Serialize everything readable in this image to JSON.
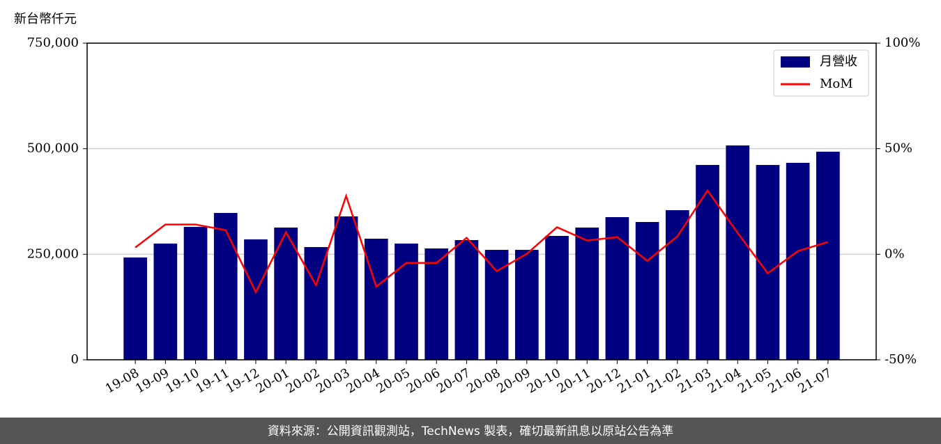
{
  "chart_data": {
    "type": "bar_line",
    "y_label": "新台幣仟元",
    "categories": [
      "19-08",
      "19-09",
      "19-10",
      "19-11",
      "19-12",
      "20-01",
      "20-02",
      "20-03",
      "20-04",
      "20-05",
      "20-06",
      "20-07",
      "20-08",
      "20-09",
      "20-10",
      "20-11",
      "20-12",
      "21-01",
      "21-02",
      "21-03",
      "21-04",
      "21-05",
      "21-06",
      "21-07"
    ],
    "series": [
      {
        "name": "月營收",
        "type": "bar",
        "color": "#000080",
        "values": [
          242300,
          275300,
          314800,
          347800,
          285200,
          313200,
          267000,
          339600,
          286800,
          275300,
          263700,
          283500,
          260400,
          260400,
          293400,
          313200,
          337900,
          326400,
          354400,
          461500,
          507700,
          461500,
          466500,
          492900
        ]
      },
      {
        "name": "MoM",
        "type": "line",
        "axis": "y2",
        "color": "#ff0000",
        "values": [
          3.2,
          14.1,
          14.1,
          11.4,
          -17.9,
          10.4,
          -14.6,
          27.6,
          -15.3,
          -4.1,
          -4.1,
          7.8,
          -8.0,
          0.2,
          12.8,
          6.5,
          8.1,
          -3.1,
          8.5,
          30.2,
          10.1,
          -9.0,
          1.5,
          5.8
        ]
      }
    ],
    "ylim": [
      0,
      750000
    ],
    "yticks": [
      0,
      {
        "value": 250000,
        "label": "250,000"
      },
      {
        "value": 500000,
        "label": "500,000"
      },
      {
        "value": 750000,
        "label": "750,000"
      }
    ],
    "y2lim": [
      -50,
      100
    ],
    "y2ticks": [
      {
        "value": -50,
        "label": "-50%"
      },
      {
        "value": 0,
        "label": "0%"
      },
      {
        "value": 50,
        "label": "50%"
      },
      {
        "value": 100,
        "label": "100%"
      }
    ],
    "grid": true,
    "legend": "upper right",
    "footer": "資料來源：公開資訊觀測站，TechNews 製表，確切最新訊息以原站公告為準"
  }
}
